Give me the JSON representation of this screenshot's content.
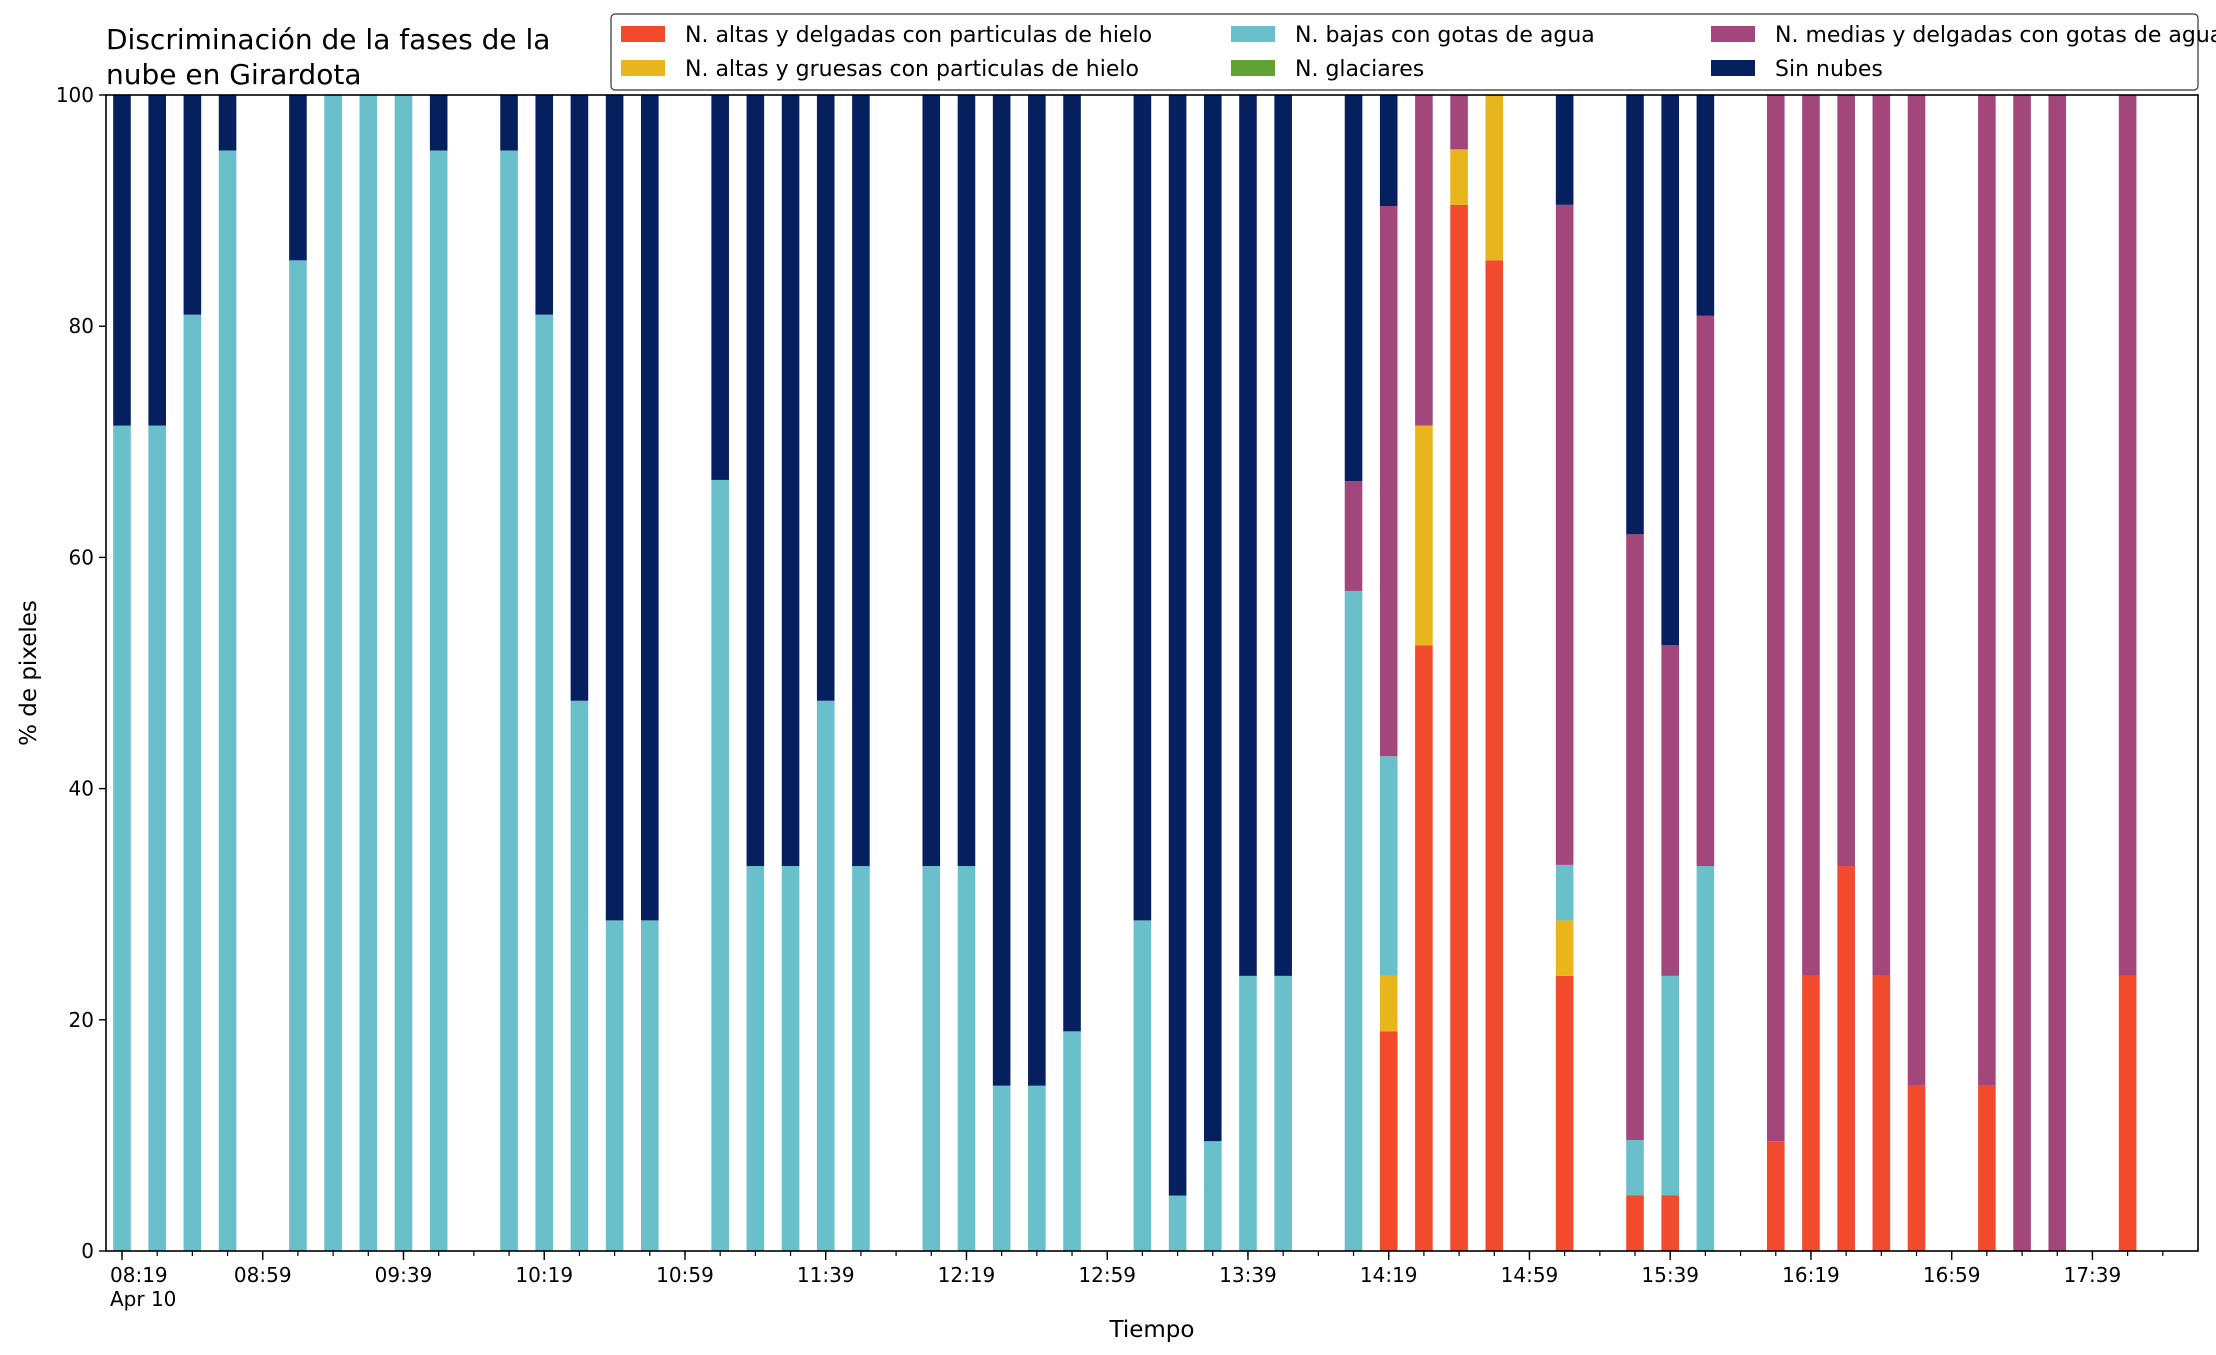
{
  "chart_data": {
    "type": "bar",
    "stacked": true,
    "title_lines": [
      "Discriminación de la fases de la",
      "nube en Girardota"
    ],
    "xlabel": "Tiempo",
    "ylabel": "% de pixeles",
    "ylim": [
      0,
      100
    ],
    "yticks": [
      0,
      20,
      40,
      60,
      80,
      100
    ],
    "grid": false,
    "legend_position": "top-right",
    "x_start": "08:19",
    "x_end": "17:59",
    "x_interval_minutes": 10,
    "xtick_labels": [
      {
        "time": "08:19",
        "label": "08:19",
        "sublabel": "Apr 10"
      },
      {
        "time": "08:59",
        "label": "08:59"
      },
      {
        "time": "09:39",
        "label": "09:39"
      },
      {
        "time": "10:19",
        "label": "10:19"
      },
      {
        "time": "10:59",
        "label": "10:59"
      },
      {
        "time": "11:39",
        "label": "11:39"
      },
      {
        "time": "12:19",
        "label": "12:19"
      },
      {
        "time": "12:59",
        "label": "12:59"
      },
      {
        "time": "13:39",
        "label": "13:39"
      },
      {
        "time": "14:19",
        "label": "14:19"
      },
      {
        "time": "14:59",
        "label": "14:59"
      },
      {
        "time": "15:39",
        "label": "15:39"
      },
      {
        "time": "16:19",
        "label": "16:19"
      },
      {
        "time": "16:59",
        "label": "16:59"
      },
      {
        "time": "17:39",
        "label": "17:39"
      }
    ],
    "series": [
      {
        "key": "altas_delgadas",
        "name": "N. altas y delgadas con particulas de hielo",
        "color": "#f14a2c"
      },
      {
        "key": "altas_gruesas",
        "name": "N. altas y gruesas con particulas de hielo",
        "color": "#e8b51d"
      },
      {
        "key": "bajas",
        "name": "N. bajas con gotas de agua",
        "color": "#69bfca"
      },
      {
        "key": "glaciares",
        "name": "N. glaciares",
        "color": "#62a232"
      },
      {
        "key": "medias",
        "name": "N. medias y delgadas con gotas de agua",
        "color": "#a3467c"
      },
      {
        "key": "sin_nubes",
        "name": "Sin nubes",
        "color": "#061f5f"
      }
    ],
    "legend_order": [
      "altas_delgadas",
      "altas_gruesas",
      "bajas",
      "glaciares",
      "medias",
      "sin_nubes"
    ],
    "bars": [
      {
        "time": "08:19",
        "bajas": 71.4,
        "sin_nubes": 28.6
      },
      {
        "time": "08:29",
        "bajas": 71.4,
        "sin_nubes": 28.6
      },
      {
        "time": "08:39",
        "bajas": 81.0,
        "sin_nubes": 19.0
      },
      {
        "time": "08:49",
        "bajas": 95.2,
        "sin_nubes": 4.8
      },
      {
        "time": "09:09",
        "bajas": 85.7,
        "sin_nubes": 14.3
      },
      {
        "time": "09:19",
        "bajas": 100
      },
      {
        "time": "09:29",
        "bajas": 100
      },
      {
        "time": "09:39",
        "bajas": 100
      },
      {
        "time": "09:49",
        "bajas": 95.2,
        "sin_nubes": 4.8
      },
      {
        "time": "10:09",
        "bajas": 95.2,
        "sin_nubes": 4.8
      },
      {
        "time": "10:19",
        "bajas": 81.0,
        "sin_nubes": 19.0
      },
      {
        "time": "10:29",
        "bajas": 47.6,
        "sin_nubes": 52.4
      },
      {
        "time": "10:39",
        "bajas": 28.6,
        "sin_nubes": 71.4
      },
      {
        "time": "10:49",
        "bajas": 28.6,
        "sin_nubes": 71.4
      },
      {
        "time": "11:09",
        "bajas": 66.7,
        "sin_nubes": 33.3
      },
      {
        "time": "11:19",
        "bajas": 33.3,
        "sin_nubes": 66.7
      },
      {
        "time": "11:29",
        "bajas": 33.3,
        "sin_nubes": 66.7
      },
      {
        "time": "11:39",
        "bajas": 47.6,
        "sin_nubes": 52.4
      },
      {
        "time": "11:49",
        "bajas": 33.3,
        "sin_nubes": 66.7
      },
      {
        "time": "12:09",
        "bajas": 33.3,
        "sin_nubes": 66.7
      },
      {
        "time": "12:19",
        "bajas": 33.3,
        "sin_nubes": 66.7
      },
      {
        "time": "12:29",
        "bajas": 14.3,
        "sin_nubes": 85.7
      },
      {
        "time": "12:39",
        "bajas": 14.3,
        "sin_nubes": 85.7
      },
      {
        "time": "12:49",
        "bajas": 19.0,
        "sin_nubes": 81.0
      },
      {
        "time": "13:09",
        "bajas": 28.6,
        "sin_nubes": 71.4
      },
      {
        "time": "13:19",
        "bajas": 4.8,
        "sin_nubes": 95.2
      },
      {
        "time": "13:29",
        "bajas": 9.5,
        "sin_nubes": 90.5
      },
      {
        "time": "13:39",
        "bajas": 23.8,
        "sin_nubes": 76.2
      },
      {
        "time": "13:49",
        "bajas": 23.8,
        "sin_nubes": 76.2
      },
      {
        "time": "14:09",
        "bajas": 57.1,
        "medias": 9.5,
        "sin_nubes": 33.4
      },
      {
        "time": "14:19",
        "altas_delgadas": 19.0,
        "altas_gruesas": 4.8,
        "bajas": 19.0,
        "medias": 47.6,
        "sin_nubes": 9.6
      },
      {
        "time": "14:29",
        "altas_delgadas": 52.4,
        "altas_gruesas": 19.0,
        "medias": 28.6
      },
      {
        "time": "14:39",
        "altas_delgadas": 90.5,
        "altas_gruesas": 4.8,
        "medias": 4.7
      },
      {
        "time": "14:49",
        "altas_delgadas": 85.7,
        "altas_gruesas": 14.3
      },
      {
        "time": "15:09",
        "altas_delgadas": 23.8,
        "altas_gruesas": 4.8,
        "bajas": 4.8,
        "medias": 57.1,
        "sin_nubes": 9.5
      },
      {
        "time": "15:29",
        "altas_delgadas": 4.8,
        "bajas": 4.8,
        "medias": 52.4,
        "sin_nubes": 38.0
      },
      {
        "time": "15:39",
        "altas_delgadas": 4.8,
        "bajas": 19.0,
        "medias": 28.6,
        "sin_nubes": 47.6
      },
      {
        "time": "15:49",
        "bajas": 33.3,
        "medias": 47.6,
        "sin_nubes": 19.1
      },
      {
        "time": "16:09",
        "altas_delgadas": 9.5,
        "medias": 90.5
      },
      {
        "time": "16:19",
        "altas_delgadas": 23.8,
        "medias": 76.2
      },
      {
        "time": "16:29",
        "altas_delgadas": 33.3,
        "medias": 66.7
      },
      {
        "time": "16:39",
        "altas_delgadas": 23.8,
        "medias": 76.2
      },
      {
        "time": "16:49",
        "altas_delgadas": 14.3,
        "medias": 85.7
      },
      {
        "time": "17:09",
        "altas_delgadas": 14.3,
        "medias": 85.7
      },
      {
        "time": "17:19",
        "medias": 100
      },
      {
        "time": "17:29",
        "medias": 100
      },
      {
        "time": "17:49",
        "altas_delgadas": 23.8,
        "medias": 76.2
      }
    ]
  }
}
